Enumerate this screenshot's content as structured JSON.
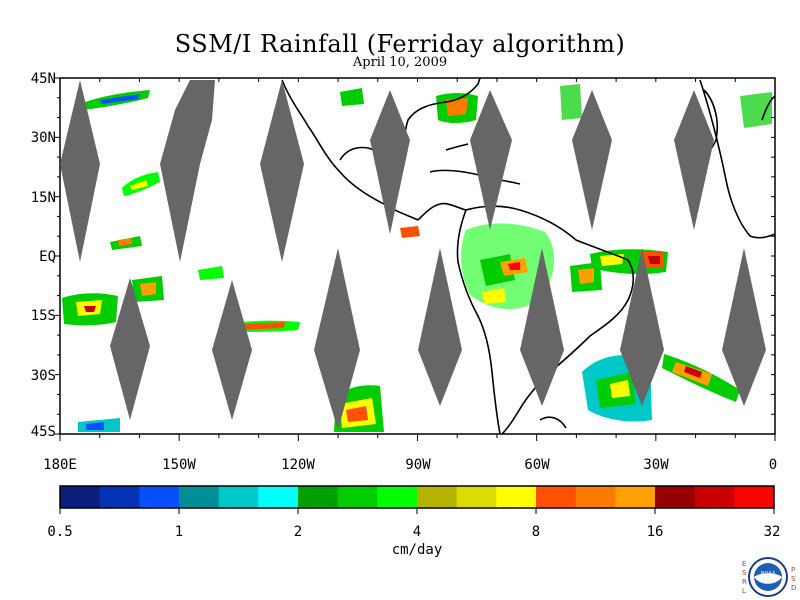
{
  "title": "SSM/I Rainfall (Ferriday algorithm)",
  "subtitle": "April 10, 2009",
  "map": {
    "lat_labels": [
      "45N",
      "30N",
      "15N",
      "EQ",
      "15S",
      "30S",
      "45S"
    ],
    "lon_labels": [
      "180E",
      "150W",
      "120W",
      "90W",
      "60W",
      "30W",
      "0"
    ],
    "swath_gap_color": "#666666",
    "coastline_color": "#000000"
  },
  "colorbar": {
    "colors": [
      "#0b1f7a",
      "#0433b5",
      "#0650ff",
      "#008f96",
      "#00c8c8",
      "#00ffff",
      "#00a000",
      "#00cc00",
      "#00ff00",
      "#b4b400",
      "#dcdc00",
      "#ffff00",
      "#ff5000",
      "#ff7a00",
      "#ffa000",
      "#960000",
      "#c80000",
      "#ff0000"
    ],
    "tick_labels": [
      "0.5",
      "1",
      "2",
      "4",
      "8",
      "16",
      "32"
    ],
    "units": "cm/day"
  },
  "logo": {
    "left_letters": "ESRL",
    "right_letters": "PSD",
    "center_text": "NOAA"
  }
}
